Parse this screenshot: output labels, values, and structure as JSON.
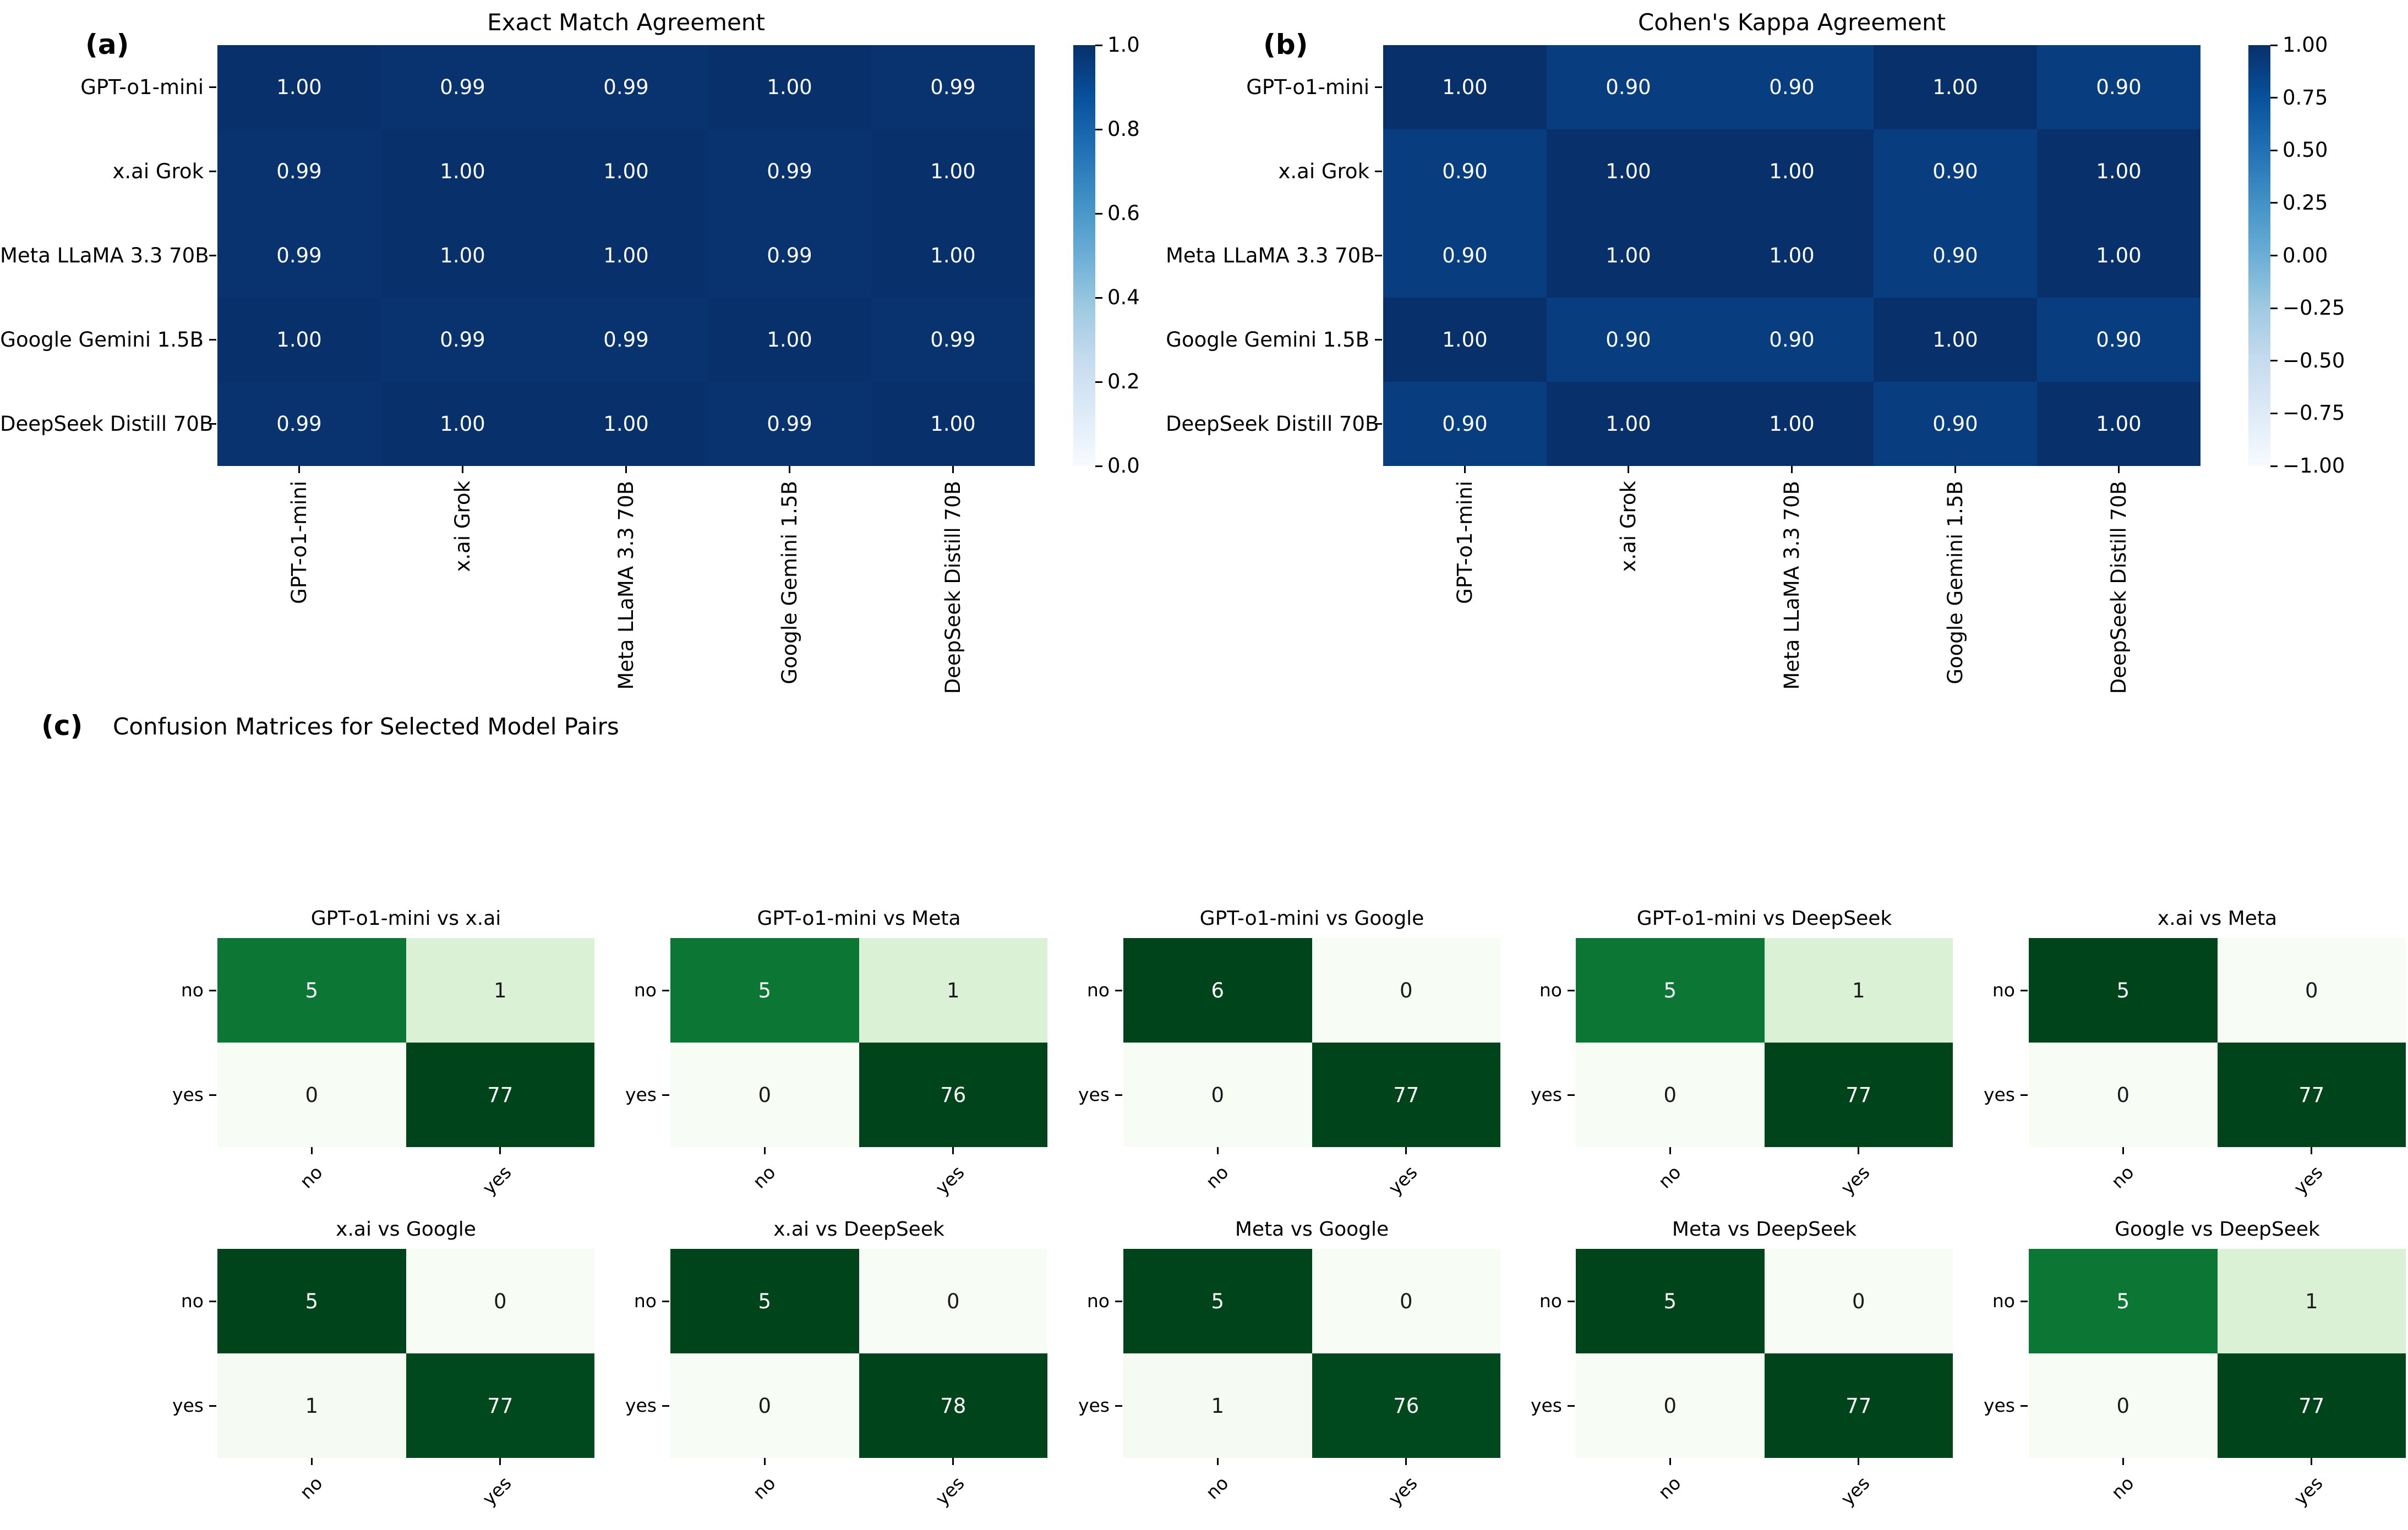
{
  "panels": {
    "a": {
      "label": "(a)"
    },
    "b": {
      "label": "(b)"
    },
    "c": {
      "label": "(c)"
    }
  },
  "chart_data": [
    {
      "type": "heatmap",
      "title": "Exact Match Agreement",
      "categories": [
        "GPT-o1-mini",
        "x.ai Grok",
        "Meta LLaMA 3.3 70B",
        "Google Gemini 1.5B",
        "DeepSeek Distill 70B"
      ],
      "matrix": [
        [
          1.0,
          0.99,
          0.99,
          1.0,
          0.99
        ],
        [
          0.99,
          1.0,
          1.0,
          0.99,
          1.0
        ],
        [
          0.99,
          1.0,
          1.0,
          0.99,
          1.0
        ],
        [
          1.0,
          0.99,
          0.99,
          1.0,
          0.99
        ],
        [
          0.99,
          1.0,
          1.0,
          0.99,
          1.0
        ]
      ],
      "vmin": 0.0,
      "vmax": 1.0,
      "colormap": "Blues",
      "colorbar_ticks": [
        "1.0",
        "0.8",
        "0.6",
        "0.4",
        "0.2",
        "0.0"
      ],
      "value_decimals": 2
    },
    {
      "type": "heatmap",
      "title": "Cohen's Kappa Agreement",
      "categories": [
        "GPT-o1-mini",
        "x.ai Grok",
        "Meta LLaMA 3.3 70B",
        "Google Gemini 1.5B",
        "DeepSeek Distill 70B"
      ],
      "matrix": [
        [
          1.0,
          0.9,
          0.9,
          1.0,
          0.9
        ],
        [
          0.9,
          1.0,
          1.0,
          0.9,
          1.0
        ],
        [
          0.9,
          1.0,
          1.0,
          0.9,
          1.0
        ],
        [
          1.0,
          0.9,
          0.9,
          1.0,
          0.9
        ],
        [
          0.9,
          1.0,
          1.0,
          0.9,
          1.0
        ]
      ],
      "vmin": -1.0,
      "vmax": 1.0,
      "colormap": "Blues",
      "colorbar_ticks": [
        "1.00",
        "0.75",
        "0.50",
        "0.25",
        "0.00",
        "−0.25",
        "−0.50",
        "−0.75",
        "−1.00"
      ],
      "value_decimals": 2
    },
    {
      "type": "confusion-matrix-grid",
      "title": "Confusion Matrices for Selected Model Pairs",
      "class_labels": [
        "no",
        "yes"
      ],
      "colormap": "Greens",
      "row_normalized_colors": true,
      "matrices": [
        {
          "title": "GPT-o1-mini vs x.ai",
          "values": [
            [
              5,
              1
            ],
            [
              0,
              77
            ]
          ]
        },
        {
          "title": "GPT-o1-mini vs Meta",
          "values": [
            [
              5,
              1
            ],
            [
              0,
              76
            ]
          ]
        },
        {
          "title": "GPT-o1-mini vs Google",
          "values": [
            [
              6,
              0
            ],
            [
              0,
              77
            ]
          ]
        },
        {
          "title": "GPT-o1-mini vs DeepSeek",
          "values": [
            [
              5,
              1
            ],
            [
              0,
              77
            ]
          ]
        },
        {
          "title": "x.ai vs Meta",
          "values": [
            [
              5,
              0
            ],
            [
              0,
              77
            ]
          ]
        },
        {
          "title": "x.ai vs Google",
          "values": [
            [
              5,
              0
            ],
            [
              1,
              77
            ]
          ]
        },
        {
          "title": "x.ai vs DeepSeek",
          "values": [
            [
              5,
              0
            ],
            [
              0,
              78
            ]
          ]
        },
        {
          "title": "Meta vs Google",
          "values": [
            [
              5,
              0
            ],
            [
              1,
              76
            ]
          ]
        },
        {
          "title": "Meta vs DeepSeek",
          "values": [
            [
              5,
              0
            ],
            [
              0,
              77
            ]
          ]
        },
        {
          "title": "Google vs DeepSeek",
          "values": [
            [
              5,
              1
            ],
            [
              0,
              77
            ]
          ]
        }
      ]
    }
  ],
  "colors": {
    "background": "#ffffff",
    "text": "#000000",
    "annotation_light": "#ffffff",
    "annotation_dark": "#1a1a1a",
    "tick": "#000000",
    "blues_anchors": [
      "#f7fbff",
      "#deebf7",
      "#c6dbef",
      "#9ecae1",
      "#6baed6",
      "#4292c6",
      "#2171b5",
      "#08519c",
      "#08306b"
    ],
    "greens_anchors": [
      "#f7fcf5",
      "#e5f5e0",
      "#c7e9c0",
      "#a1d99b",
      "#74c476",
      "#41ab5d",
      "#238b45",
      "#006d2c",
      "#00441b"
    ]
  }
}
